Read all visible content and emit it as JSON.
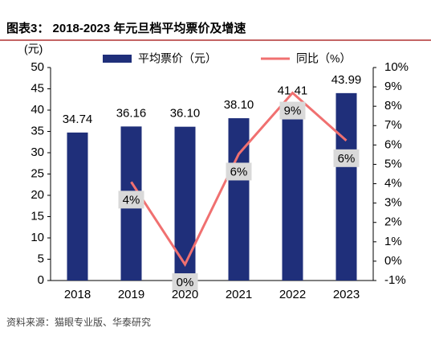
{
  "chart_data": {
    "type": "bar_line",
    "title": "图表3： 2018-2023 年元旦档平均票价及增速",
    "y_label": "(元)",
    "source": "资料来源：猫眼专业版、华泰研究",
    "categories": [
      "2018",
      "2019",
      "2020",
      "2021",
      "2022",
      "2023"
    ],
    "series": [
      {
        "name": "平均票价（元）",
        "type": "bar",
        "color": "#1f2f7a",
        "values": [
          34.74,
          36.16,
          36.1,
          38.1,
          41.41,
          43.99
        ],
        "value_labels": [
          "34.74",
          "36.16",
          "36.10",
          "38.10",
          "41.41",
          "43.99"
        ]
      },
      {
        "name": "同比（%）",
        "type": "line",
        "axis": "y2",
        "color": "#f07070",
        "values": [
          null,
          4.09,
          -0.17,
          5.54,
          8.69,
          6.23
        ],
        "value_labels": [
          null,
          "4%",
          "0%",
          "6%",
          "9%",
          "6%"
        ]
      }
    ],
    "ylim": [
      0,
      50
    ],
    "yticks": [
      0,
      5,
      10,
      15,
      20,
      25,
      30,
      35,
      40,
      45,
      50
    ],
    "y2lim": [
      -1,
      10
    ],
    "y2ticks": [
      {
        "value": -1,
        "label": "-1%"
      },
      {
        "value": 0,
        "label": "0%"
      },
      {
        "value": 1,
        "label": "1%"
      },
      {
        "value": 2,
        "label": "2%"
      },
      {
        "value": 3,
        "label": "3%"
      },
      {
        "value": 4,
        "label": "4%"
      },
      {
        "value": 5,
        "label": "5%"
      },
      {
        "value": 6,
        "label": "6%"
      },
      {
        "value": 7,
        "label": "7%"
      },
      {
        "value": 8,
        "label": "8%"
      },
      {
        "value": 9,
        "label": "9%"
      },
      {
        "value": 10,
        "label": "10%"
      }
    ]
  }
}
